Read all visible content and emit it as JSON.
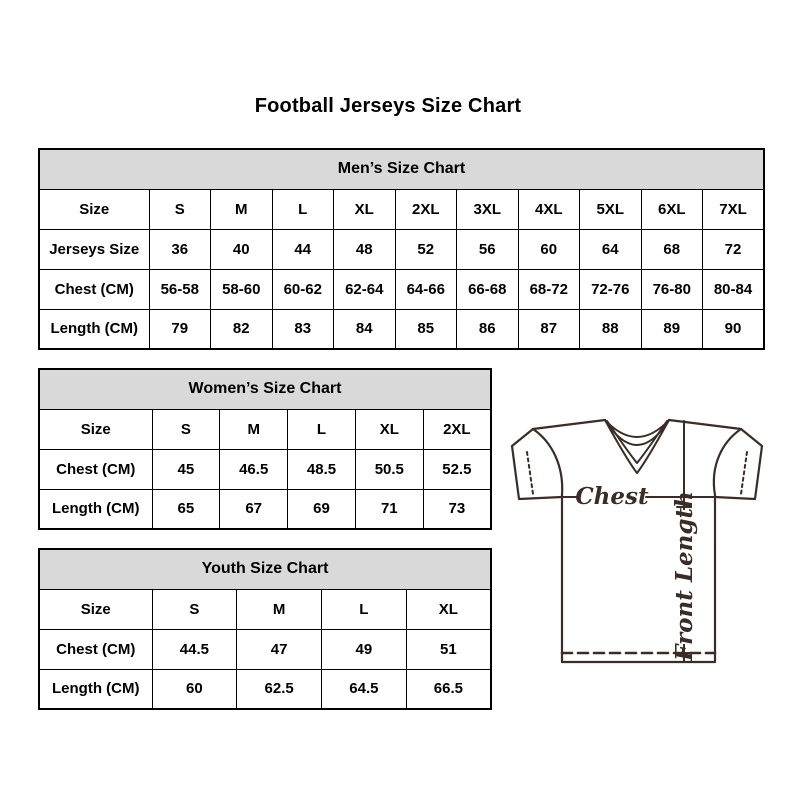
{
  "page": {
    "title": "Football Jerseys Size Chart"
  },
  "tables": {
    "mens": {
      "title": "Men’s Size Chart",
      "rows": [
        [
          "Size",
          "S",
          "M",
          "L",
          "XL",
          "2XL",
          "3XL",
          "4XL",
          "5XL",
          "6XL",
          "7XL"
        ],
        [
          "Jerseys Size",
          "36",
          "40",
          "44",
          "48",
          "52",
          "56",
          "60",
          "64",
          "68",
          "72"
        ],
        [
          "Chest (CM)",
          "56-58",
          "58-60",
          "60-62",
          "62-64",
          "64-66",
          "66-68",
          "68-72",
          "72-76",
          "76-80",
          "80-84"
        ],
        [
          "Length (CM)",
          "79",
          "82",
          "83",
          "84",
          "85",
          "86",
          "87",
          "88",
          "89",
          "90"
        ]
      ]
    },
    "womens": {
      "title": "Women’s Size Chart",
      "rows": [
        [
          "Size",
          "S",
          "M",
          "L",
          "XL",
          "2XL"
        ],
        [
          "Chest (CM)",
          "45",
          "46.5",
          "48.5",
          "50.5",
          "52.5"
        ],
        [
          "Length (CM)",
          "65",
          "67",
          "69",
          "71",
          "73"
        ]
      ]
    },
    "youth": {
      "title": "Youth Size Chart",
      "rows": [
        [
          "Size",
          "S",
          "M",
          "L",
          "XL"
        ],
        [
          "Chest (CM)",
          "44.5",
          "47",
          "49",
          "51"
        ],
        [
          "Length (CM)",
          "60",
          "62.5",
          "64.5",
          "66.5"
        ]
      ]
    }
  },
  "diagram": {
    "chest_label": "Chest",
    "front_length_label": "Front Length",
    "line_color": "#3a2d25"
  },
  "colors": {
    "header_bg": "#d9d9d9",
    "border": "#000000",
    "text": "#000000",
    "background": "#ffffff"
  }
}
